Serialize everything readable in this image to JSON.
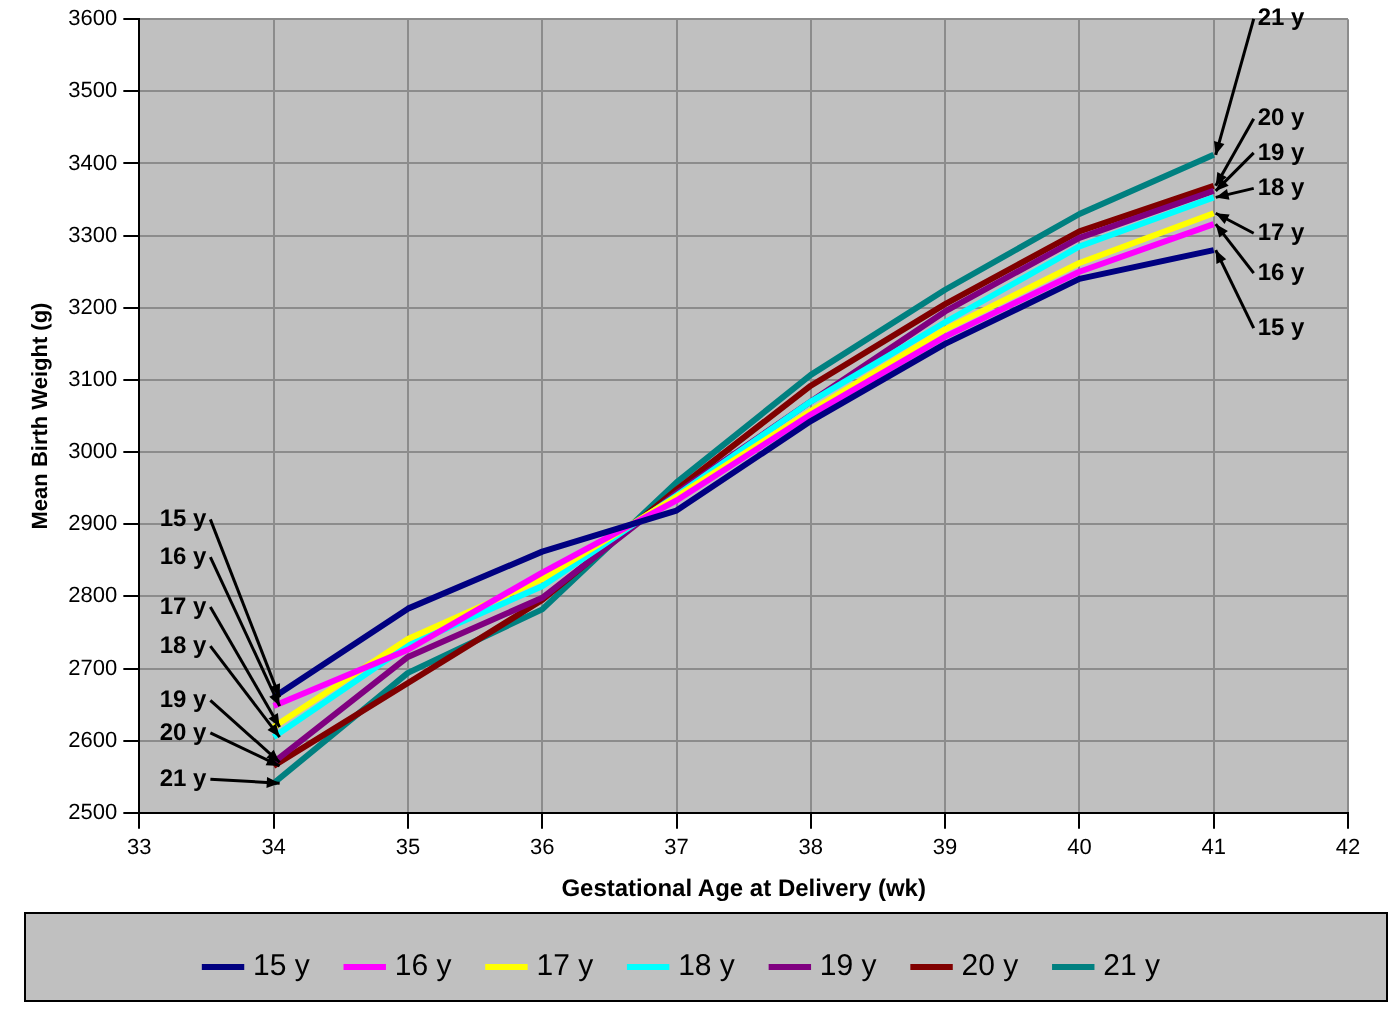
{
  "chart_data": {
    "type": "line",
    "xlabel": "Gestational Age at Delivery (wk)",
    "ylabel": "Mean Birth Weight (g)",
    "x": [
      34,
      35,
      36,
      37,
      38,
      39,
      40,
      41
    ],
    "series": [
      {
        "name": "15 y",
        "color": "#000080",
        "values": [
          2660,
          2783,
          2862,
          2919,
          3043,
          3150,
          3240,
          3280
        ]
      },
      {
        "name": "16 y",
        "color": "#ff00ff",
        "values": [
          2648,
          2726,
          2833,
          2933,
          3052,
          3160,
          3250,
          3316
        ]
      },
      {
        "name": "17 y",
        "color": "#ffff00",
        "values": [
          2619,
          2741,
          2824,
          2938,
          3057,
          3170,
          3262,
          3331
        ]
      },
      {
        "name": "18 y",
        "color": "#00ffff",
        "values": [
          2605,
          2732,
          2814,
          2940,
          3070,
          3180,
          3285,
          3353
        ]
      },
      {
        "name": "19 y",
        "color": "#800080",
        "values": [
          2570,
          2716,
          2798,
          2943,
          3070,
          3195,
          3297,
          3362
        ]
      },
      {
        "name": "20 y",
        "color": "#800000",
        "values": [
          2565,
          2680,
          2795,
          2948,
          3092,
          3205,
          3306,
          3369
        ]
      },
      {
        "name": "21 y",
        "color": "#008080",
        "values": [
          2541,
          2694,
          2782,
          2958,
          3107,
          3225,
          3330,
          3412
        ]
      }
    ],
    "xlim": [
      33,
      42
    ],
    "xticks": [
      33,
      34,
      35,
      36,
      37,
      38,
      39,
      40,
      41,
      42
    ],
    "ylim": [
      2500,
      3600
    ],
    "yticks": [
      2500,
      2600,
      2700,
      2800,
      2900,
      3000,
      3100,
      3200,
      3300,
      3400,
      3500,
      3600
    ],
    "grid": true,
    "legend": "bottom",
    "marker": "none",
    "line_style": "solid"
  }
}
